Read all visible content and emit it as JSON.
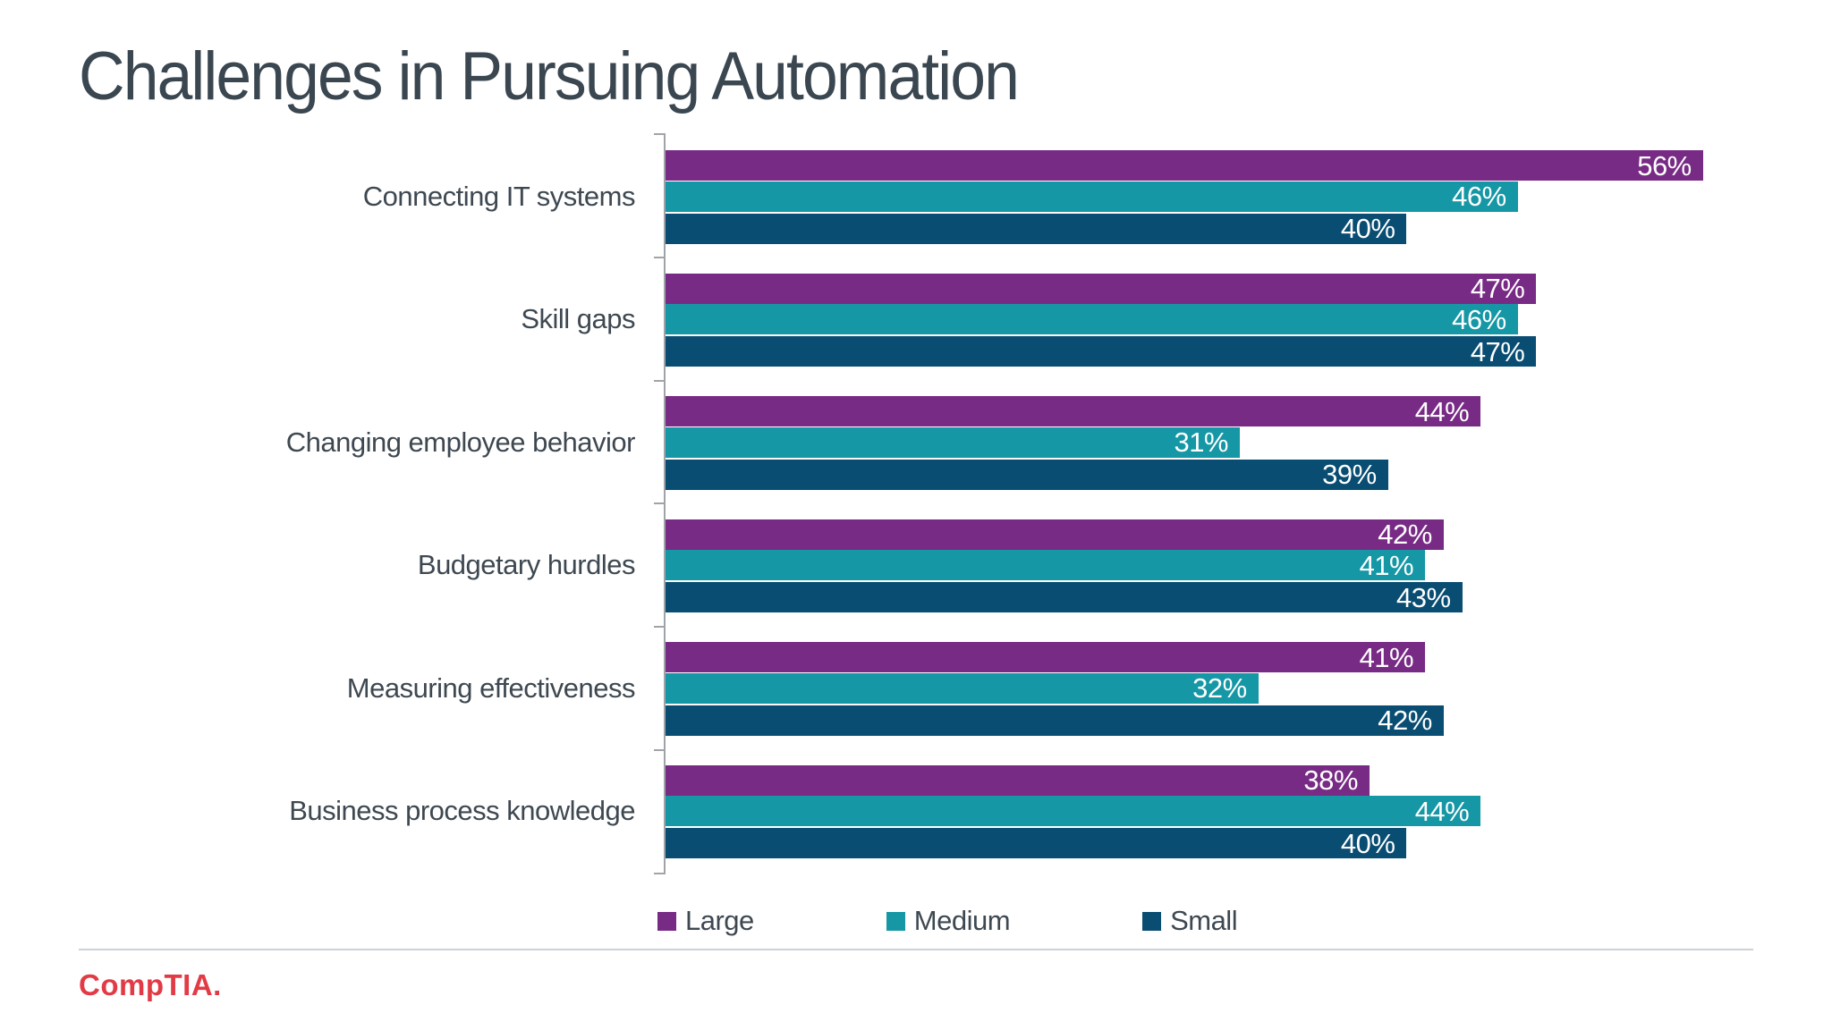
{
  "page_title": "Challenges in Pursuing Automation",
  "chart_data": {
    "type": "bar",
    "orientation": "horizontal",
    "title": "Challenges in Pursuing Automation",
    "categories": [
      "Connecting IT systems",
      "Skill gaps",
      "Changing employee behavior",
      "Budgetary hurdles",
      "Measuring effectiveness",
      "Business process knowledge"
    ],
    "series": [
      {
        "name": "Large",
        "color": "#782B85",
        "values": [
          56,
          47,
          44,
          42,
          41,
          38
        ]
      },
      {
        "name": "Medium",
        "color": "#1697A5",
        "values": [
          46,
          46,
          31,
          41,
          32,
          44
        ]
      },
      {
        "name": "Small",
        "color": "#094D72",
        "values": [
          40,
          47,
          39,
          43,
          42,
          40
        ]
      }
    ],
    "value_suffix": "%",
    "xlim": [
      0,
      60
    ],
    "grid": false,
    "legend_position": "bottom",
    "value_label_style": "white, inside bar end"
  },
  "legend_labels": [
    "Large",
    "Medium",
    "Small"
  ],
  "footer": {
    "logo_text": "CompTIA."
  },
  "colors": {
    "background": "#FFFFFF",
    "title_text": "#3A4650",
    "category_text": "#3E4851",
    "axis": "#A0A4A8",
    "divider": "#CBD3DA",
    "logo_red": "#E23B46",
    "series_large": "#782B85",
    "series_medium": "#1697A5",
    "series_small": "#094D72"
  }
}
